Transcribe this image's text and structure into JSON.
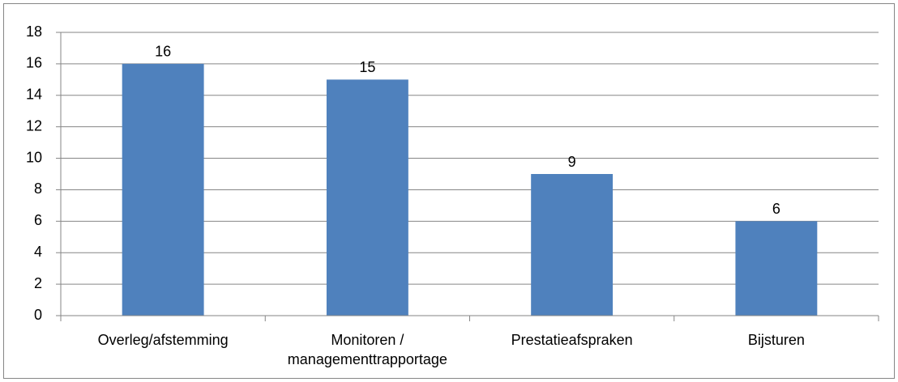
{
  "chart_data": {
    "type": "bar",
    "categories": [
      "Overleg/afstemming",
      "Monitoren / managementtrapportage",
      "Prestatieafspraken",
      "Bijsturen"
    ],
    "values": [
      16,
      15,
      9,
      6
    ],
    "color": "#4f81bd",
    "ylim": [
      0,
      18
    ],
    "yticks": [
      0,
      2,
      4,
      6,
      8,
      10,
      12,
      14,
      16,
      18
    ],
    "grid": true
  }
}
